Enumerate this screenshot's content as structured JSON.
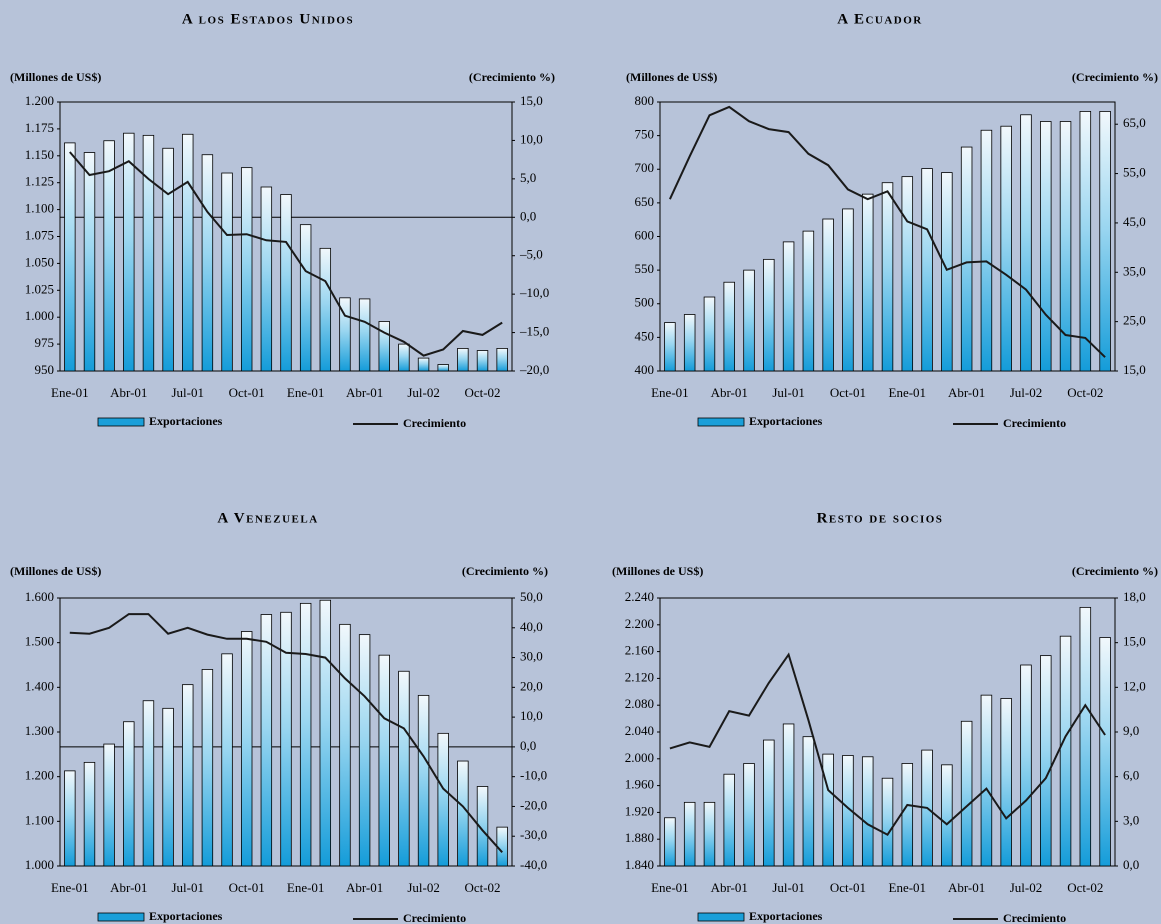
{
  "chart_data": [
    {
      "type": "combo",
      "title": "A los Estados Unidos",
      "y_label": "(Millones de US$)",
      "y2_label": "(Crecimiento %)",
      "categories": [
        "Ene-01",
        null,
        null,
        "Abr-01",
        null,
        null,
        "Jul-01",
        null,
        null,
        "Oct-01",
        null,
        null,
        "Ene-01",
        null,
        null,
        "Abr-01",
        null,
        null,
        "Jul-02",
        null,
        null,
        "Oct-02",
        null
      ],
      "series": [
        {
          "name": "Exportaciones",
          "kind": "bar",
          "color": "#1a9fd9",
          "values": [
            1162,
            1153,
            1164,
            1171,
            1169,
            1157,
            1170,
            1151,
            1134,
            1139,
            1121,
            1114,
            1086,
            1064,
            1018,
            1017,
            996,
            975,
            962,
            956,
            971,
            969,
            971
          ]
        },
        {
          "name": "Crecimiento",
          "kind": "line",
          "axis": "y2",
          "color": "#1a1a1a",
          "values": [
            8.5,
            5.5,
            6,
            7.3,
            5,
            3,
            4.6,
            0.7,
            -2.3,
            -2.2,
            -3,
            -3.2,
            -7,
            -8.3,
            -12.8,
            -13.6,
            -15,
            -16.2,
            -18,
            -17.2,
            -14.8,
            -15.3,
            -13.7
          ]
        }
      ],
      "ylim": [
        950,
        1200
      ],
      "yticks": [
        950,
        975,
        {
          "value": 1000,
          "label": "1.000"
        },
        {
          "value": 1025,
          "label": "1.025"
        },
        {
          "value": 1050,
          "label": "1.050"
        },
        {
          "value": 1075,
          "label": "1.075"
        },
        {
          "value": 1100,
          "label": "1.100"
        },
        {
          "value": 1125,
          "label": "1.125"
        },
        {
          "value": 1150,
          "label": "1.150"
        },
        {
          "value": 1175,
          "label": "1.175"
        },
        {
          "value": 1200,
          "label": "1.200"
        }
      ],
      "y2lim": [
        -20,
        15
      ],
      "y2ticks": [
        {
          "value": -20,
          "label": "–20,0"
        },
        {
          "value": -15,
          "label": "–15,0"
        },
        {
          "value": -10,
          "label": "–10,0"
        },
        {
          "value": -5,
          "label": "–5,0"
        },
        {
          "value": 0,
          "label": "0,0"
        },
        {
          "value": 5,
          "label": "5,0"
        },
        {
          "value": 10,
          "label": "10,0"
        },
        {
          "value": 15,
          "label": "15,0"
        }
      ],
      "zero_line": true
    },
    {
      "type": "combo",
      "title": "A Ecuador",
      "y_label": "(Millones de US$)",
      "y2_label": "(Crecimiento %)",
      "categories": [
        "Ene-01",
        null,
        null,
        "Abr-01",
        null,
        null,
        "Jul-01",
        null,
        null,
        "Oct-01",
        null,
        null,
        "Ene-01",
        null,
        null,
        "Abr-01",
        null,
        null,
        "Jul-02",
        null,
        null,
        "Oct-02",
        null
      ],
      "series": [
        {
          "name": "Exportaciones",
          "kind": "bar",
          "color": "#1a9fd9",
          "values": [
            472,
            484,
            510,
            532,
            550,
            566,
            592,
            608,
            626,
            641,
            663,
            680,
            689,
            701,
            695,
            733,
            758,
            764,
            781,
            771,
            771,
            786,
            786
          ]
        },
        {
          "name": "Crecimiento",
          "kind": "line",
          "axis": "y2",
          "color": "#1a1a1a",
          "values": [
            49.8,
            58.5,
            66.8,
            68.5,
            65.6,
            64,
            63.4,
            59,
            56.7,
            51.8,
            49.8,
            51.4,
            45.3,
            43.7,
            35.5,
            37,
            37.2,
            34.5,
            31.5,
            26.4,
            22.3,
            21.7,
            17.8
          ]
        }
      ],
      "ylim": [
        400,
        800
      ],
      "yticks": [
        400,
        450,
        500,
        550,
        600,
        650,
        700,
        750,
        800
      ],
      "y2lim": [
        15,
        69.5
      ],
      "y2ticks": [
        {
          "value": 15,
          "label": "15,0"
        },
        {
          "value": 25,
          "label": "25,0"
        },
        {
          "value": 35,
          "label": "35,0"
        },
        {
          "value": 45,
          "label": "45,0"
        },
        {
          "value": 55,
          "label": "55,0"
        },
        {
          "value": 65,
          "label": "65,0"
        }
      ],
      "zero_line": false
    },
    {
      "type": "combo",
      "title": "A Venezuela",
      "y_label": "(Millones de US$)",
      "y2_label": "(Crecimiento %)",
      "categories": [
        "Ene-01",
        null,
        null,
        "Abr-01",
        null,
        null,
        "Jul-01",
        null,
        null,
        "Oct-01",
        null,
        null,
        "Ene-01",
        null,
        null,
        "Abr-01",
        null,
        null,
        "Jul-02",
        null,
        null,
        "Oct-02",
        null
      ],
      "series": [
        {
          "name": "Exportaciones",
          "kind": "bar",
          "color": "#1a9fd9",
          "values": [
            1213,
            1232,
            1273,
            1323,
            1370,
            1353,
            1406,
            1440,
            1475,
            1525,
            1563,
            1568,
            1588,
            1595,
            1541,
            1518,
            1472,
            1436,
            1382,
            1297,
            1235,
            1178,
            1087
          ]
        },
        {
          "name": "Crecimiento",
          "kind": "line",
          "axis": "y2",
          "color": "#1a1a1a",
          "values": [
            38.3,
            38,
            40,
            44.6,
            44.6,
            38,
            40,
            37.7,
            36.3,
            36.3,
            35.3,
            31.6,
            31.2,
            30,
            23,
            17,
            9.6,
            6.2,
            -3.2,
            -14,
            -20,
            -28,
            -35.4
          ]
        }
      ],
      "ylim": [
        1000,
        1600
      ],
      "yticks": [
        {
          "value": 1000,
          "label": "1.000"
        },
        {
          "value": 1100,
          "label": "1.100"
        },
        {
          "value": 1200,
          "label": "1.200"
        },
        {
          "value": 1300,
          "label": "1.300"
        },
        {
          "value": 1400,
          "label": "1.400"
        },
        {
          "value": 1500,
          "label": "1.500"
        },
        {
          "value": 1600,
          "label": "1.600"
        }
      ],
      "y2lim": [
        -40,
        50
      ],
      "y2ticks": [
        {
          "value": -40,
          "label": "-40,0"
        },
        {
          "value": -30,
          "label": "-30,0"
        },
        {
          "value": -20,
          "label": "-20,0"
        },
        {
          "value": -10,
          "label": "-10,0"
        },
        {
          "value": 0,
          "label": "0,0"
        },
        {
          "value": 10,
          "label": "10,0"
        },
        {
          "value": 20,
          "label": "20,0"
        },
        {
          "value": 30,
          "label": "30,0"
        },
        {
          "value": 40,
          "label": "40,0"
        },
        {
          "value": 50,
          "label": "50,0"
        }
      ],
      "zero_line": true
    },
    {
      "type": "combo",
      "title": "Resto de socios",
      "y_label": "(Millones de US$)",
      "y2_label": "(Crecimiento %)",
      "categories": [
        "Ene-01",
        null,
        null,
        "Abr-01",
        null,
        null,
        "Jul-01",
        null,
        null,
        "Oct-01",
        null,
        null,
        "Ene-01",
        null,
        null,
        "Abr-01",
        null,
        null,
        "Jul-02",
        null,
        null,
        "Oct-02",
        null
      ],
      "series": [
        {
          "name": "Exportaciones",
          "kind": "bar",
          "color": "#1a9fd9",
          "values": [
            1912,
            1935,
            1935,
            1977,
            1993,
            2028,
            2052,
            2033,
            2007,
            2005,
            2003,
            1971,
            1993,
            2013,
            1991,
            2056,
            2095,
            2090,
            2140,
            2154,
            2183,
            2226,
            2181
          ]
        },
        {
          "name": "Crecimiento",
          "kind": "line",
          "axis": "y2",
          "color": "#1a1a1a",
          "values": [
            7.9,
            8.3,
            8,
            10.4,
            10.1,
            12.3,
            14.2,
            9.8,
            5.1,
            3.9,
            2.8,
            2.1,
            4.1,
            3.9,
            2.8,
            4,
            5.2,
            3.2,
            4.4,
            5.9,
            8.7,
            10.8,
            8.8
          ]
        }
      ],
      "ylim": [
        1840,
        2240
      ],
      "yticks": [
        {
          "value": 1840,
          "label": "1.840"
        },
        {
          "value": 1880,
          "label": "1.880"
        },
        {
          "value": 1920,
          "label": "1.920"
        },
        {
          "value": 1960,
          "label": "1.960"
        },
        {
          "value": 2000,
          "label": "2.000"
        },
        {
          "value": 2040,
          "label": "2.040"
        },
        {
          "value": 2080,
          "label": "2.080"
        },
        {
          "value": 2120,
          "label": "2.120"
        },
        {
          "value": 2160,
          "label": "2.160"
        },
        {
          "value": 2200,
          "label": "2.200"
        },
        {
          "value": 2240,
          "label": "2.240"
        }
      ],
      "y2lim": [
        0,
        18
      ],
      "y2ticks": [
        {
          "value": 0,
          "label": "0,0"
        },
        {
          "value": 3,
          "label": "3,0"
        },
        {
          "value": 6,
          "label": "6,0"
        },
        {
          "value": 9,
          "label": "9,0"
        },
        {
          "value": 12,
          "label": "12,0"
        },
        {
          "value": 15,
          "label": "15,0"
        },
        {
          "value": 18,
          "label": "18,0"
        }
      ],
      "zero_line": false
    }
  ]
}
